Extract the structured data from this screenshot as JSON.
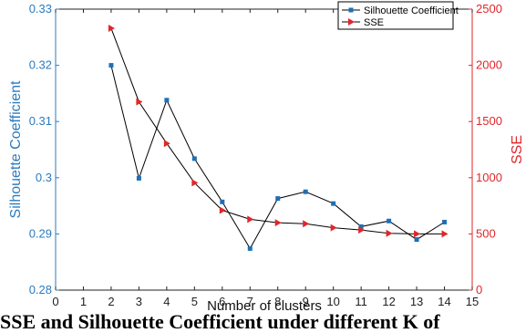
{
  "chart_data": {
    "type": "line",
    "xlabel": "Number of clusters",
    "ylabel_left": "Silhouette Coefficient",
    "ylabel_right": "SSE",
    "xlim": [
      0,
      15
    ],
    "xticks": [
      0,
      1,
      2,
      3,
      4,
      5,
      6,
      7,
      8,
      9,
      10,
      11,
      12,
      13,
      14,
      15
    ],
    "ylim_left": [
      0.28,
      0.33
    ],
    "yticks_left": [
      0.28,
      0.29,
      0.3,
      0.31,
      0.32,
      0.33
    ],
    "ytick_labels_left": [
      "0.28",
      "0.29",
      "0.3",
      "0.31",
      "0.32",
      "0.33"
    ],
    "ylim_right": [
      0,
      2500
    ],
    "yticks_right": [
      0,
      500,
      1000,
      1500,
      2000,
      2500
    ],
    "legend_position": "top-right",
    "colors": {
      "left_axis": "#2b7bbf",
      "right_axis": "#e0262a",
      "line": "#000000",
      "sil_marker": "#1f6fb5",
      "sse_marker": "#e0262a"
    },
    "series": [
      {
        "name": "Silhouette Coefficient",
        "axis": "left",
        "marker": "square",
        "x": [
          2,
          3,
          4,
          5,
          6,
          7,
          8,
          9,
          10,
          11,
          12,
          13,
          14
        ],
        "values": [
          0.32,
          0.2999,
          0.3138,
          0.3034,
          0.2957,
          0.2874,
          0.2963,
          0.2975,
          0.2954,
          0.2913,
          0.2923,
          0.289,
          0.2921
        ]
      },
      {
        "name": "SSE",
        "axis": "right",
        "marker": "triangle-right",
        "x": [
          2,
          3,
          4,
          5,
          6,
          7,
          8,
          9,
          10,
          11,
          12,
          13,
          14
        ],
        "values": [
          2330,
          1675,
          1305,
          955,
          710,
          630,
          600,
          590,
          555,
          535,
          505,
          500,
          500
        ]
      }
    ]
  },
  "caption": "SSE and Silhouette Coefficient under different K of"
}
